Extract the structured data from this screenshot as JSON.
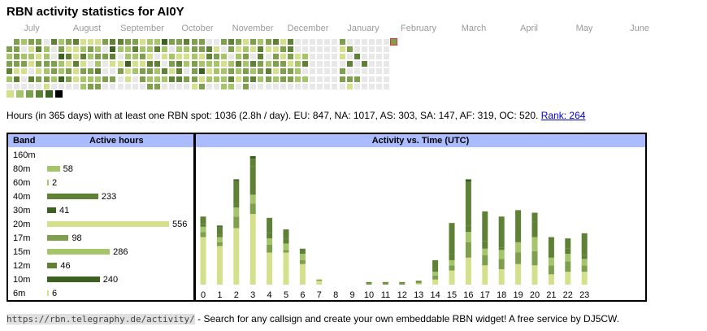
{
  "title": "RBN activity statistics for AI0Y",
  "months": [
    "July",
    "August",
    "September",
    "October",
    "November",
    "December",
    "January",
    "February",
    "March",
    "April",
    "May",
    "June"
  ],
  "colors": {
    "empty": "#e8e8e8",
    "levels": [
      "#d4e08c",
      "#a6c46a",
      "#7ea04e",
      "#5e8136",
      "#3d6123",
      "#000000"
    ],
    "header_bg": "#aabbff",
    "today": "#dd3333"
  },
  "summary": {
    "text": "Hours (in 365 days) with at least one RBN spot: 1036 (2.8h / day). EU: 847, NA: 1017, AS: 303, SA: 147, AF: 319, OC: 520.",
    "rank_label": "Rank: 264"
  },
  "band_table": {
    "band_header": "Band",
    "hours_header": "Active hours",
    "rows": [
      {
        "band": "160m",
        "hours": null,
        "color": ""
      },
      {
        "band": "80m",
        "hours": 58,
        "color": "#a6c46a"
      },
      {
        "band": "60m",
        "hours": 2,
        "color": "#a6c46a"
      },
      {
        "band": "40m",
        "hours": 233,
        "color": "#5e8136"
      },
      {
        "band": "30m",
        "hours": 41,
        "color": "#3d6123"
      },
      {
        "band": "20m",
        "hours": 556,
        "color": "#d4e08c"
      },
      {
        "band": "17m",
        "hours": 98,
        "color": "#7ea04e"
      },
      {
        "band": "15m",
        "hours": 286,
        "color": "#a6c46a"
      },
      {
        "band": "12m",
        "hours": 46,
        "color": "#5e8136"
      },
      {
        "band": "10m",
        "hours": 240,
        "color": "#3d6123"
      },
      {
        "band": "6m",
        "hours": 6,
        "color": "#d4e08c"
      }
    ]
  },
  "chart_data": {
    "type": "bar",
    "title": "Activity vs. Time (UTC)",
    "categories": [
      "0",
      "1",
      "2",
      "3",
      "4",
      "5",
      "6",
      "7",
      "8",
      "9",
      "10",
      "11",
      "12",
      "13",
      "14",
      "15",
      "16",
      "17",
      "18",
      "19",
      "20",
      "21",
      "22",
      "23"
    ],
    "series": [
      {
        "values": [
          37,
          30,
          44,
          55,
          25,
          25,
          16,
          3,
          0,
          0,
          0,
          0,
          0,
          1,
          4,
          11,
          21,
          15,
          12,
          16,
          15,
          8,
          10,
          10
        ]
      },
      {
        "values": [
          4,
          3,
          9,
          8,
          6,
          2,
          3,
          1,
          0,
          0,
          1,
          1,
          1,
          1,
          3,
          4,
          12,
          8,
          8,
          9,
          11,
          7,
          8,
          5
        ]
      },
      {
        "values": [
          4,
          4,
          7,
          7,
          5,
          5,
          5,
          0,
          0,
          0,
          0,
          0,
          0,
          0,
          3,
          4,
          8,
          5,
          7,
          8,
          11,
          6,
          6,
          5
        ]
      },
      {
        "values": [
          2,
          2,
          3,
          22,
          4,
          4,
          4,
          0,
          0,
          0,
          0,
          0,
          0,
          0,
          3,
          5,
          5,
          6,
          2,
          11,
          12,
          4,
          4,
          3
        ]
      },
      {
        "values": [
          6,
          6,
          18,
          6,
          12,
          7,
          0,
          0,
          0,
          0,
          1,
          1,
          1,
          1,
          6,
          24,
          34,
          23,
          24,
          14,
          7,
          12,
          8,
          17
        ]
      },
      {
        "values": [
          0,
          1,
          1,
          2,
          0,
          0,
          0,
          0,
          0,
          0,
          0,
          0,
          0,
          0,
          0,
          0,
          2,
          0,
          0,
          0,
          0,
          0,
          0,
          0
        ]
      }
    ]
  },
  "footer": {
    "url": "https://rbn.telegraphy.de/activity/",
    "text": " - Search for any callsign and create your own embeddable RBN widget! A free service by DJ5CW."
  }
}
